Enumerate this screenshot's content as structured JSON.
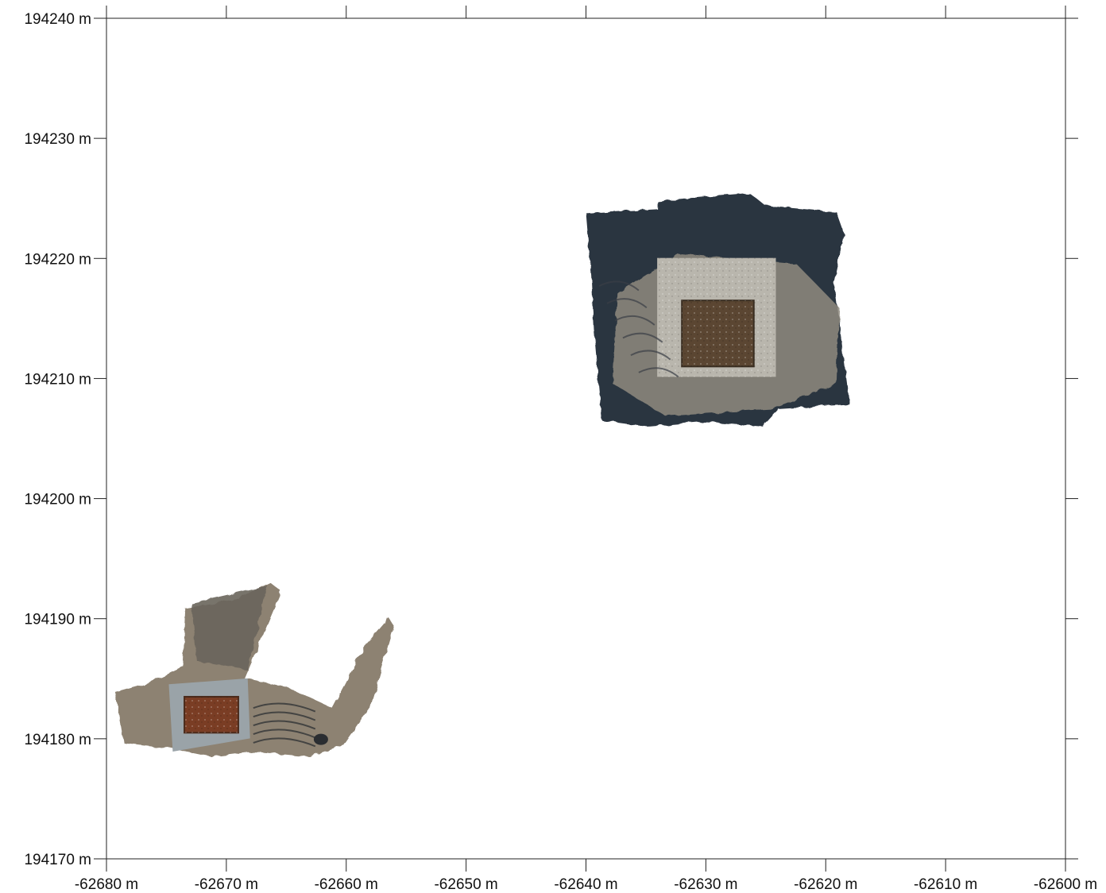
{
  "chart_data": {
    "type": "map",
    "x_unit": "m",
    "y_unit": "m",
    "xlim": [
      -62680,
      -62600
    ],
    "ylim": [
      194170,
      194240
    ],
    "x_ticks": [
      -62680,
      -62670,
      -62660,
      -62650,
      -62640,
      -62630,
      -62620,
      -62610,
      -62600
    ],
    "y_ticks": [
      194170,
      194180,
      194190,
      194200,
      194210,
      194220,
      194230,
      194240
    ],
    "x_tick_labels": [
      "-62680 m",
      "-62670 m",
      "-62660 m",
      "-62650 m",
      "-62640 m",
      "-62630 m",
      "-62620 m",
      "-62610 m",
      "-62600 m"
    ],
    "y_tick_labels": [
      "194170 m",
      "194180 m",
      "194190 m",
      "194200 m",
      "194210 m",
      "194220 m",
      "194230 m",
      "194240 m"
    ],
    "grid": false,
    "layers": [
      {
        "kind": "orthophoto",
        "subject": "square-structure-ruin-large",
        "extent": {
          "x": [
            -62640,
            -62618
          ],
          "y": [
            194206,
            194224
          ]
        },
        "inner_pit": {
          "x": [
            -62632,
            -62626
          ],
          "y": [
            194211,
            194216.5
          ]
        }
      },
      {
        "kind": "orthophoto",
        "subject": "small-structure-ruin",
        "extent": {
          "x": [
            -62679.5,
            -62656
          ],
          "y": [
            194178.5,
            194193
          ]
        },
        "inner_pit": {
          "x": [
            -62673.5,
            -62669
          ],
          "y": [
            194180.5,
            194183.5
          ]
        }
      }
    ],
    "colors": {
      "frame": "#222222",
      "background": "#ffffff",
      "dark_sky": "#2b3440",
      "stone": "#b9b6ad",
      "soil": "#5b4632",
      "rust": "#7a3d24",
      "shadow": "#3b3f46"
    }
  }
}
